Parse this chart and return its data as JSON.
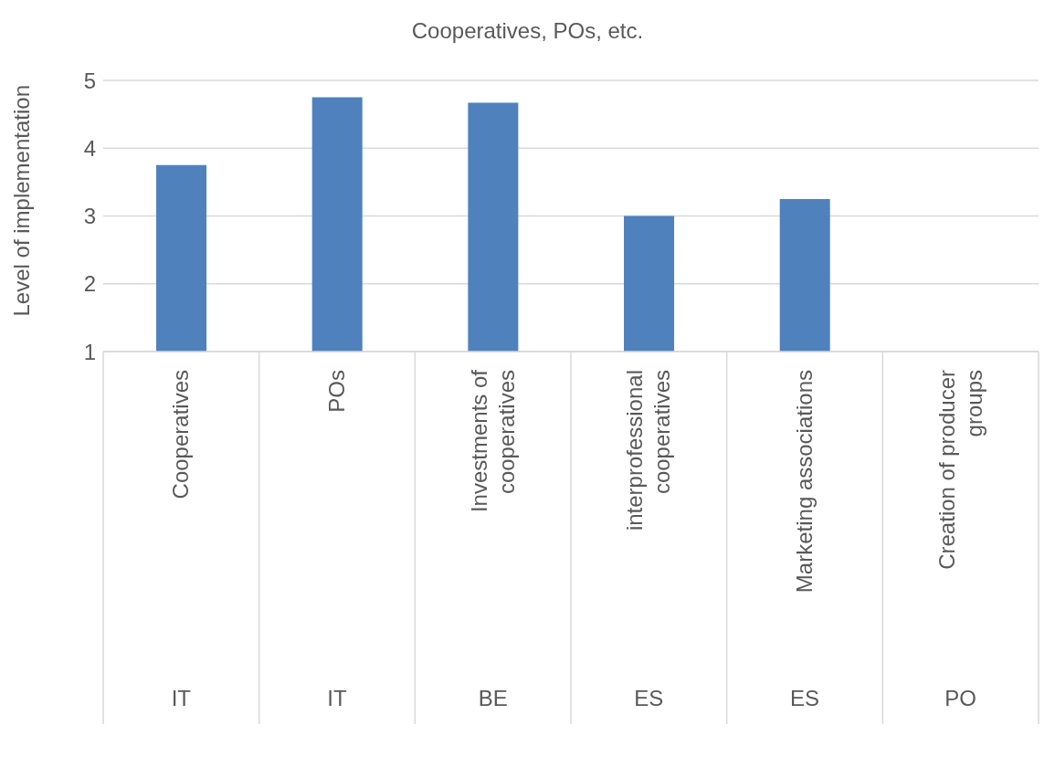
{
  "chart_data": {
    "type": "bar",
    "title": "Cooperatives, POs, etc.",
    "ylabel": "Level of implementation",
    "categories": [
      "Cooperatives",
      "POs",
      "Investments of cooperatives",
      "interprofessional cooperatives",
      "Marketing associations",
      "Creation of producer groups"
    ],
    "values": [
      3.75,
      4.75,
      4.67,
      3.0,
      3.25,
      null
    ],
    "color": "#4f81bd",
    "ylim": [
      1,
      5
    ],
    "yticks": [
      1,
      2,
      3,
      4,
      5
    ],
    "grid": "y",
    "annotations": [
      "IT",
      "IT",
      "BE",
      "ES",
      "ES",
      "PO"
    ]
  }
}
